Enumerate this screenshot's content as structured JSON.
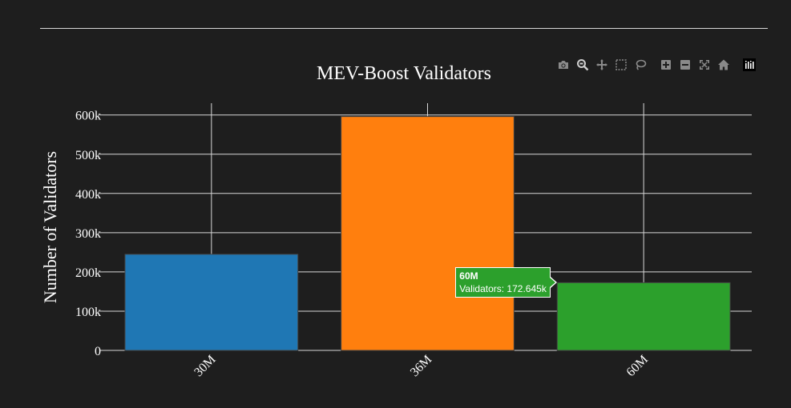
{
  "chart_data": {
    "type": "bar",
    "title": "MEV-Boost Validators",
    "xlabel": "",
    "ylabel": "Number of Validators",
    "categories": [
      "30M",
      "36M",
      "60M"
    ],
    "values": [
      245000,
      596000,
      172645
    ],
    "colors": [
      "#1f77b4",
      "#ff7f0e",
      "#2ca02c"
    ],
    "ylim": [
      0,
      630000
    ],
    "yticks": [
      0,
      100000,
      200000,
      300000,
      400000,
      500000,
      600000
    ],
    "ytick_labels": [
      "0",
      "100k",
      "200k",
      "300k",
      "400k",
      "500k",
      "600k"
    ],
    "grid": true
  },
  "tooltip": {
    "title": "60M",
    "text": "Validators: 172.645k",
    "category_index": 2
  },
  "modebar": {
    "icons": [
      "camera-icon",
      "zoom-icon",
      "pan-icon",
      "box-select-icon",
      "lasso-select-icon",
      "zoom-in-icon",
      "zoom-out-icon",
      "autoscale-icon",
      "reset-axes-icon",
      "plotly-logo-icon"
    ]
  },
  "colors": {
    "background": "#1e1e1e",
    "grid": "#d8d8d8",
    "text": "#ffffff",
    "modebar_icon": "#8a8a8a"
  }
}
